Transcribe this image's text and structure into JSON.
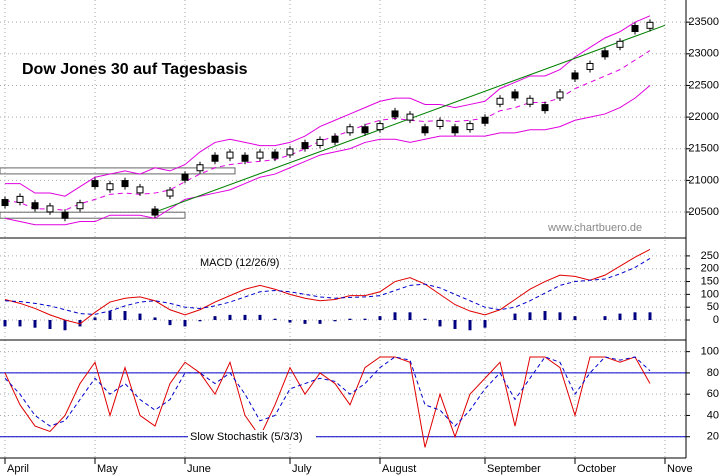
{
  "chart_data": [
    {
      "type": "candlestick",
      "title": "Dow Jones 30 auf Tagesbasis",
      "watermark": "www.chartbuero.de",
      "categories": [
        "April",
        null,
        null,
        null,
        null,
        null,
        "May",
        null,
        null,
        null,
        null,
        null,
        "June",
        null,
        null,
        null,
        null,
        null,
        null,
        "July",
        null,
        null,
        null,
        null,
        null,
        "August",
        null,
        null,
        null,
        null,
        null,
        null,
        "September",
        null,
        null,
        null,
        null,
        null,
        "October",
        null,
        null,
        null,
        null,
        null,
        "Nove"
      ],
      "ylim": [
        20090,
        23850
      ],
      "yticks": [
        20500,
        21000,
        21500,
        22000,
        22500,
        23000,
        23500
      ],
      "grid": true,
      "series": [
        {
          "name": "close",
          "color": "#000000",
          "values": [
            20650,
            20700,
            20600,
            20550,
            20450,
            20600,
            20950,
            20900,
            20950,
            20850,
            20500,
            20800,
            21050,
            21200,
            21350,
            21400,
            21350,
            21400,
            21400,
            21450,
            21550,
            21600,
            21650,
            21800,
            21800,
            21850,
            22050,
            22000,
            21800,
            21900,
            21800,
            21850,
            21950,
            22250,
            22350,
            22250,
            22150,
            22350,
            22650,
            22800,
            23000,
            23150,
            23400,
            23450,
            null
          ]
        },
        {
          "name": "upper",
          "color": "#e000e0",
          "values": [
            20950,
            20950,
            20800,
            20800,
            20750,
            20900,
            21050,
            21100,
            21150,
            21100,
            21200,
            21150,
            21250,
            21450,
            21600,
            21650,
            21600,
            21550,
            21550,
            21600,
            21700,
            21850,
            21950,
            22050,
            22150,
            22250,
            22300,
            22300,
            22200,
            22200,
            22150,
            22200,
            22250,
            22450,
            22550,
            22650,
            22650,
            22750,
            22950,
            23100,
            23250,
            23350,
            23500,
            23600,
            null
          ]
        },
        {
          "name": "middle",
          "color": "#e000e0",
          "values": [
            20680,
            20650,
            20550,
            20550,
            20530,
            20630,
            20700,
            20780,
            20800,
            20780,
            20800,
            20850,
            20980,
            21100,
            21200,
            21250,
            21280,
            21300,
            21330,
            21400,
            21500,
            21620,
            21700,
            21780,
            21880,
            21950,
            21980,
            21950,
            21930,
            21950,
            21930,
            21950,
            21980,
            22100,
            22150,
            22230,
            22230,
            22300,
            22450,
            22550,
            22650,
            22750,
            22900,
            23050,
            null
          ]
        },
        {
          "name": "lower",
          "color": "#e000e0",
          "values": [
            20400,
            20350,
            20300,
            20300,
            20300,
            20350,
            20350,
            20450,
            20450,
            20450,
            20400,
            20550,
            20700,
            20750,
            20800,
            20850,
            20950,
            21050,
            21100,
            21200,
            21300,
            21400,
            21450,
            21500,
            21600,
            21650,
            21650,
            21600,
            21650,
            21700,
            21700,
            21700,
            21700,
            21750,
            21750,
            21800,
            21800,
            21850,
            21950,
            22000,
            22050,
            22150,
            22300,
            22500,
            null
          ]
        }
      ],
      "trendline": {
        "color": "#008000",
        "from": [
          10,
          20500
        ],
        "to": [
          44,
          23450
        ]
      },
      "levels": [
        21150,
        20450
      ]
    },
    {
      "type": "macd",
      "label": "MACD (12/26/9)",
      "ylim": [
        -78,
        312
      ],
      "yticks": [
        0,
        50,
        100,
        150,
        200,
        250
      ],
      "grid": true,
      "series": [
        {
          "name": "macd",
          "color": "#e00000",
          "values": [
            80,
            65,
            45,
            20,
            0,
            -15,
            30,
            70,
            85,
            90,
            75,
            40,
            20,
            40,
            70,
            95,
            120,
            135,
            120,
            100,
            85,
            75,
            80,
            95,
            95,
            110,
            150,
            165,
            140,
            100,
            60,
            35,
            20,
            40,
            80,
            120,
            150,
            175,
            170,
            155,
            175,
            210,
            245,
            275
          ]
        },
        {
          "name": "signal",
          "color": "#0000cc",
          "values": [
            75,
            72,
            65,
            55,
            40,
            25,
            22,
            35,
            55,
            70,
            75,
            65,
            50,
            45,
            55,
            70,
            90,
            110,
            115,
            110,
            100,
            90,
            85,
            88,
            90,
            95,
            115,
            135,
            140,
            125,
            100,
            75,
            50,
            40,
            50,
            75,
            105,
            135,
            150,
            155,
            160,
            180,
            205,
            240
          ]
        },
        {
          "name": "histogram",
          "color": "#000080",
          "values": [
            -25,
            -25,
            -30,
            -35,
            -40,
            -25,
            10,
            35,
            35,
            25,
            10,
            -20,
            -25,
            -5,
            15,
            20,
            20,
            20,
            5,
            -10,
            -15,
            -15,
            -5,
            5,
            5,
            15,
            30,
            30,
            5,
            -25,
            -35,
            -40,
            -30,
            0,
            25,
            30,
            35,
            30,
            15,
            0,
            15,
            25,
            30,
            30
          ]
        }
      ]
    },
    {
      "type": "stochastic",
      "label": "Slow Stochastik (5/3/3)",
      "ylim": [
        0,
        110
      ],
      "yticks": [
        20,
        40,
        60,
        80,
        100
      ],
      "grid": true,
      "levels": [
        80,
        20
      ],
      "level_color": "#0000cc",
      "series": [
        {
          "name": "k",
          "color": "#e00000",
          "values": [
            80,
            50,
            30,
            25,
            40,
            70,
            90,
            40,
            85,
            40,
            30,
            70,
            90,
            80,
            60,
            90,
            40,
            20,
            50,
            85,
            60,
            80,
            70,
            50,
            85,
            95,
            95,
            90,
            10,
            60,
            20,
            60,
            75,
            90,
            30,
            95,
            95,
            85,
            40,
            95,
            95,
            90,
            95,
            70
          ]
        },
        {
          "name": "d",
          "color": "#0000cc",
          "values": [
            75,
            60,
            40,
            30,
            35,
            55,
            75,
            60,
            70,
            55,
            45,
            55,
            80,
            80,
            70,
            80,
            60,
            35,
            40,
            65,
            70,
            75,
            72,
            60,
            70,
            85,
            95,
            92,
            50,
            45,
            30,
            45,
            65,
            80,
            55,
            75,
            95,
            90,
            60,
            80,
            95,
            92,
            95,
            82
          ]
        }
      ]
    }
  ]
}
